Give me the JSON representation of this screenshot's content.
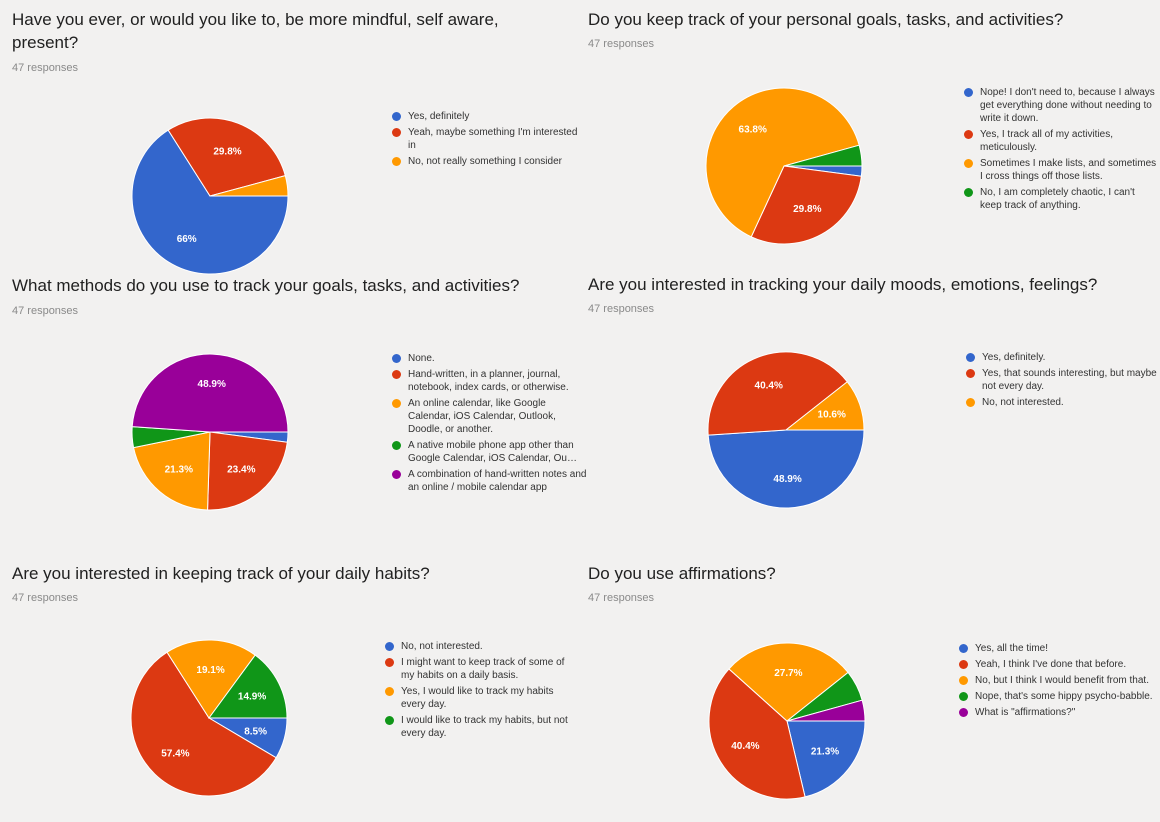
{
  "colors": {
    "blue": "#3366cc",
    "red": "#dc3912",
    "orange": "#ff9900",
    "green": "#109618",
    "purple": "#990099"
  },
  "chart_data": [
    {
      "type": "pie",
      "title": "Have you ever, or would you like to, be more mindful, self aware, present?",
      "subtitle": "47 responses",
      "categories": [
        "Yes, definitely",
        "Yeah, maybe something I'm interested in",
        "No, not really something I consider"
      ],
      "values": [
        66.0,
        29.8,
        4.2
      ],
      "labels": [
        "66%",
        "29.8%",
        ""
      ],
      "colors": [
        "#3366cc",
        "#dc3912",
        "#ff9900"
      ],
      "legend": "right"
    },
    {
      "type": "pie",
      "title": "Do you keep track of your personal goals, tasks, and activities?",
      "subtitle": "47 responses",
      "categories": [
        "Nope! I don't need to, because I always get everything done without needing to write it down.",
        "Yes, I track all of my activities, meticulously.",
        "Sometimes I make lists, and sometimes I cross things off those lists.",
        "No, I am completely chaotic, I can't keep track of anything."
      ],
      "values": [
        2.1,
        29.8,
        63.8,
        4.3
      ],
      "labels": [
        "",
        "29.8%",
        "63.8%",
        ""
      ],
      "colors": [
        "#3366cc",
        "#dc3912",
        "#ff9900",
        "#109618"
      ],
      "legend": "right"
    },
    {
      "type": "pie",
      "title": "What methods do you use to track your goals, tasks, and activities?",
      "subtitle": "47 responses",
      "categories": [
        "None.",
        "Hand-written, in a planner, journal, notebook, index cards, or otherwise.",
        "An online calendar, like Google Calendar, iOS Calendar, Outlook, Doodle, or another.",
        "A native mobile phone app other than Google Calendar, iOS Calendar, Ou…",
        "A combination of hand-written notes and an online / mobile calendar app"
      ],
      "values": [
        2.1,
        23.4,
        21.3,
        4.3,
        48.9
      ],
      "labels": [
        "",
        "23.4%",
        "21.3%",
        "",
        "48.9%"
      ],
      "colors": [
        "#3366cc",
        "#dc3912",
        "#ff9900",
        "#109618",
        "#990099"
      ],
      "legend": "right"
    },
    {
      "type": "pie",
      "title": "Are you interested in tracking your daily moods, emotions, feelings?",
      "subtitle": "47 responses",
      "categories": [
        "Yes, definitely.",
        "Yes, that sounds interesting, but maybe not every day.",
        "No, not interested."
      ],
      "values": [
        48.9,
        40.4,
        10.6
      ],
      "labels": [
        "48.9%",
        "40.4%",
        "10.6%"
      ],
      "colors": [
        "#3366cc",
        "#dc3912",
        "#ff9900"
      ],
      "legend": "right"
    },
    {
      "type": "pie",
      "title": "Are you interested in keeping track of your daily habits?",
      "subtitle": "47 responses",
      "categories": [
        "No, not interested.",
        "I might want to keep track of some of my habits on a daily basis.",
        "Yes, I would like to track my habits every day.",
        "I would like to track my habits, but not every day."
      ],
      "values": [
        8.5,
        57.4,
        19.1,
        14.9
      ],
      "labels": [
        "8.5%",
        "57.4%",
        "19.1%",
        "14.9%"
      ],
      "colors": [
        "#3366cc",
        "#dc3912",
        "#ff9900",
        "#109618"
      ],
      "legend": "right"
    },
    {
      "type": "pie",
      "title": "Do you use affirmations?",
      "subtitle": "47 responses",
      "categories": [
        "Yes, all the time!",
        "Yeah, I think I've done that before.",
        "No, but I think I would benefit from that.",
        "Nope, that's some hippy psycho-babble.",
        "What is \"affirmations?\""
      ],
      "values": [
        21.3,
        40.4,
        27.7,
        6.4,
        4.3
      ],
      "labels": [
        "21.3%",
        "40.4%",
        "27.7%",
        "",
        ""
      ],
      "colors": [
        "#3366cc",
        "#dc3912",
        "#ff9900",
        "#109618",
        "#990099"
      ],
      "legend": "right"
    }
  ]
}
